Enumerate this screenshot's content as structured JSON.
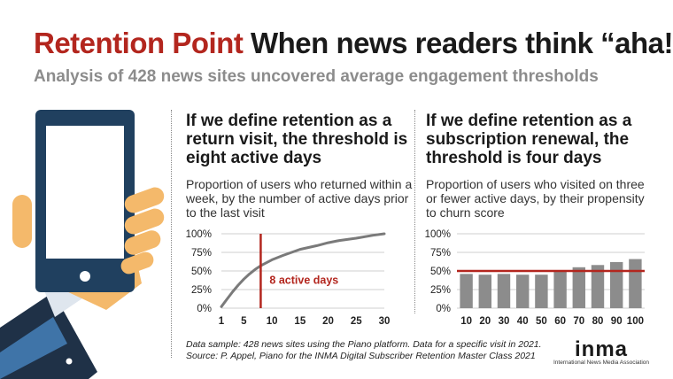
{
  "header": {
    "title_accent": "Retention Point",
    "title_rest": "When news readers think “aha!”",
    "subtitle": "Analysis of 428 news sites uncovered average engagement thresholds"
  },
  "left_panel": {
    "heading": "If we define retention as a return visit, the threshold is eight active days",
    "description": "Proportion of users who returned within a week, by the number of active days prior to the last visit"
  },
  "right_panel": {
    "heading": "If we define retention as a subscription renewal, the threshold is four days",
    "description": "Proportion of users who visited on three or fewer active days, by their propensity to churn score"
  },
  "footer": {
    "source_line1": "Data sample: 428 news sites using the Piano platform. Data for a specific visit in 2021.",
    "source_line2": "Source: P. Appel, Piano for the INMA Digital Subscriber Retention Master Class 2021",
    "logo_text": "inma",
    "logo_subtext": "International News Media Association"
  },
  "colors": {
    "accent": "#b3261e",
    "bar": "#8c8c8c",
    "line": "#7a7a7a",
    "grid": "#cfcfcf"
  },
  "illustration": {
    "icon": "hand-holding-phone-icon"
  },
  "chart_data": [
    {
      "type": "line",
      "x": [
        1,
        2,
        3,
        4,
        5,
        6,
        7,
        8,
        10,
        12,
        15,
        18,
        20,
        22,
        25,
        28,
        30
      ],
      "y": [
        2,
        12,
        22,
        31,
        39,
        46,
        52,
        57,
        65,
        71,
        79,
        84,
        88,
        91,
        94,
        98,
        100
      ],
      "x_ticks": [
        "1",
        "5",
        "10",
        "15",
        "20",
        "25",
        "30"
      ],
      "y_ticks": [
        "0%",
        "25%",
        "50%",
        "75%",
        "100%"
      ],
      "xlim": [
        1,
        30
      ],
      "ylim": [
        0,
        100
      ],
      "grid": true,
      "marker": {
        "x": 8,
        "label": "8 active days"
      }
    },
    {
      "type": "bar",
      "categories": [
        "10",
        "20",
        "30",
        "40",
        "50",
        "60",
        "70",
        "80",
        "90",
        "100"
      ],
      "values": [
        46,
        45,
        46,
        45,
        45,
        50,
        55,
        58,
        62,
        66
      ],
      "y_ticks": [
        "0%",
        "25%",
        "50%",
        "75%",
        "100%"
      ],
      "ylim": [
        0,
        100
      ],
      "grid": true,
      "reference_line": 50
    }
  ]
}
